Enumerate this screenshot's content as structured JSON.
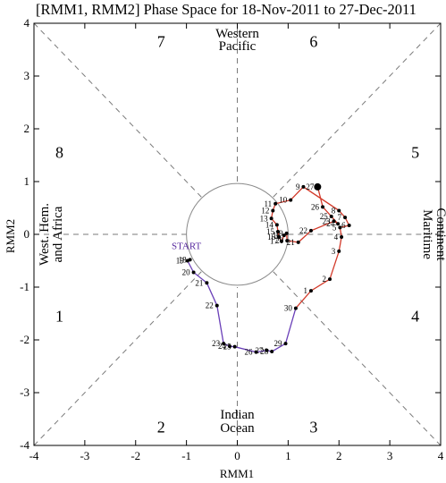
{
  "chart_data": {
    "type": "line",
    "title": "[RMM1, RMM2] Phase Space for 18-Nov-2011 to 27-Dec-2011",
    "xlabel": "RMM1",
    "ylabel": "RMM2",
    "xlim": [
      -4,
      4
    ],
    "ylim": [
      -4,
      4
    ],
    "xticks": [
      -4,
      -3,
      -2,
      -1,
      0,
      1,
      2,
      3,
      4
    ],
    "yticks": [
      -4,
      -3,
      -2,
      -1,
      0,
      1,
      2,
      3,
      4
    ],
    "unit_circle_radius": 1,
    "grid": false,
    "phase_labels": [
      {
        "text": "1",
        "x": -3.5,
        "y": -1.55
      },
      {
        "text": "2",
        "x": -1.5,
        "y": -3.65
      },
      {
        "text": "3",
        "x": 1.5,
        "y": -3.65
      },
      {
        "text": "4",
        "x": 3.5,
        "y": -1.55
      },
      {
        "text": "5",
        "x": 3.5,
        "y": 1.55
      },
      {
        "text": "6",
        "x": 1.5,
        "y": 3.65
      },
      {
        "text": "7",
        "x": -1.5,
        "y": 3.65
      },
      {
        "text": "8",
        "x": -3.5,
        "y": 1.55
      }
    ],
    "region_labels": {
      "top": [
        "Western",
        "Pacific"
      ],
      "bottom": [
        "Indian",
        "Ocean"
      ],
      "left": [
        "West. Hem.",
        "and Africa"
      ],
      "right": [
        "Maritime",
        "Continent"
      ]
    },
    "start_label": "START",
    "series": [
      {
        "month": "Nov-2011",
        "color": "#6a3fb8",
        "points": [
          {
            "day": "18",
            "x": -0.93,
            "y": -0.48
          },
          {
            "day": "19",
            "x": -0.98,
            "y": -0.5
          },
          {
            "day": "20",
            "x": -0.86,
            "y": -0.72
          },
          {
            "day": "21",
            "x": -0.6,
            "y": -0.92
          },
          {
            "day": "22",
            "x": -0.4,
            "y": -1.35
          },
          {
            "day": "23",
            "x": -0.27,
            "y": -2.07
          },
          {
            "day": "24",
            "x": -0.15,
            "y": -2.12
          },
          {
            "day": "25",
            "x": -0.05,
            "y": -2.13
          },
          {
            "day": "26",
            "x": 0.37,
            "y": -2.23
          },
          {
            "day": "27",
            "x": 0.58,
            "y": -2.2
          },
          {
            "day": "28",
            "x": 0.68,
            "y": -2.22
          },
          {
            "day": "29",
            "x": 0.95,
            "y": -2.07
          },
          {
            "day": "30",
            "x": 1.15,
            "y": -1.4
          }
        ]
      },
      {
        "month": "Dec-2011",
        "color": "#d23a2a",
        "points": [
          {
            "day": "1",
            "x": 1.45,
            "y": -1.07
          },
          {
            "day": "2",
            "x": 1.82,
            "y": -0.85
          },
          {
            "day": "3",
            "x": 2.0,
            "y": -0.32
          },
          {
            "day": "4",
            "x": 2.05,
            "y": -0.05
          },
          {
            "day": "5",
            "x": 2.02,
            "y": 0.13
          },
          {
            "day": "6",
            "x": 2.2,
            "y": 0.17
          },
          {
            "day": "7",
            "x": 2.12,
            "y": 0.32
          },
          {
            "day": "8",
            "x": 2.0,
            "y": 0.45
          },
          {
            "day": "9",
            "x": 1.3,
            "y": 0.9
          },
          {
            "day": "10",
            "x": 1.05,
            "y": 0.65
          },
          {
            "day": "11",
            "x": 0.75,
            "y": 0.58
          },
          {
            "day": "12",
            "x": 0.7,
            "y": 0.45
          },
          {
            "day": "13",
            "x": 0.67,
            "y": 0.3
          },
          {
            "day": "14",
            "x": 0.78,
            "y": 0.18
          },
          {
            "day": "15",
            "x": 0.8,
            "y": 0.05
          },
          {
            "day": "16",
            "x": 0.82,
            "y": -0.05
          },
          {
            "day": "17",
            "x": 0.87,
            "y": -0.13
          },
          {
            "day": "18",
            "x": 0.92,
            "y": -0.02
          },
          {
            "day": "19",
            "x": 0.97,
            "y": 0.02
          },
          {
            "day": "20",
            "x": 0.98,
            "y": -0.12
          },
          {
            "day": "21",
            "x": 1.2,
            "y": -0.15
          },
          {
            "day": "22",
            "x": 1.45,
            "y": 0.07
          },
          {
            "day": "23",
            "x": 1.9,
            "y": 0.25
          },
          {
            "day": "24",
            "x": 1.98,
            "y": 0.2
          },
          {
            "day": "25",
            "x": 1.85,
            "y": 0.34
          },
          {
            "day": "26",
            "x": 1.68,
            "y": 0.52
          },
          {
            "day": "27",
            "x": 1.58,
            "y": 0.9
          }
        ]
      }
    ]
  }
}
